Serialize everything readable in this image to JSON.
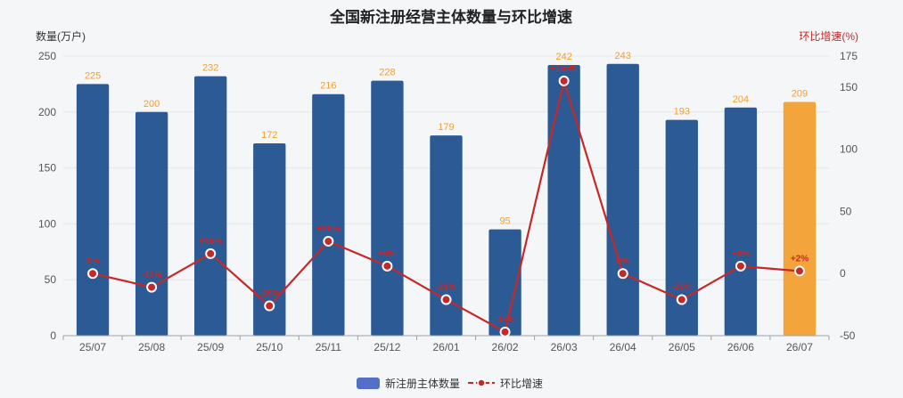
{
  "chart_data": {
    "type": "bar",
    "title": "全国新注册经营主体数量与环比增速",
    "categories": [
      "25/07",
      "25/08",
      "25/09",
      "25/10",
      "25/11",
      "25/12",
      "26/01",
      "26/02",
      "26/03",
      "26/04",
      "26/05",
      "26/06",
      "26/07"
    ],
    "series": [
      {
        "name": "新注册主体数量",
        "type": "bar",
        "axis": "left",
        "values": [
          225,
          200,
          232,
          172,
          216,
          228,
          179,
          95,
          242,
          243,
          193,
          204,
          209
        ],
        "labels": [
          "225",
          "200",
          "232",
          "172",
          "216",
          "228",
          "179",
          "95",
          "242",
          "243",
          "193",
          "204",
          "209"
        ],
        "color": "#2b5a95",
        "highlight_color": "#f3a43b",
        "highlight_index": 12
      },
      {
        "name": "环比增速",
        "type": "line",
        "axis": "right",
        "values": [
          0,
          -11,
          16,
          -26,
          26,
          6,
          -21,
          -47,
          155,
          0,
          -21,
          6,
          2
        ],
        "labels": [
          "0%",
          "-11%",
          "+16%",
          "-26%",
          "+26%",
          "+6%",
          "-21%",
          "-47%",
          "+155%",
          "0%",
          "-21%",
          "+6%",
          "+2%"
        ],
        "color": "#c62828"
      }
    ],
    "y_left": {
      "label": "数量(万户)",
      "min": 0,
      "max": 250,
      "ticks": [
        0,
        50,
        100,
        150,
        200,
        250
      ]
    },
    "y_right": {
      "label": "环比增速(%)",
      "min": -50,
      "max": 175,
      "ticks": [
        -50,
        0,
        50,
        100,
        150,
        175
      ]
    },
    "grid": true,
    "legend_position": "bottom"
  }
}
